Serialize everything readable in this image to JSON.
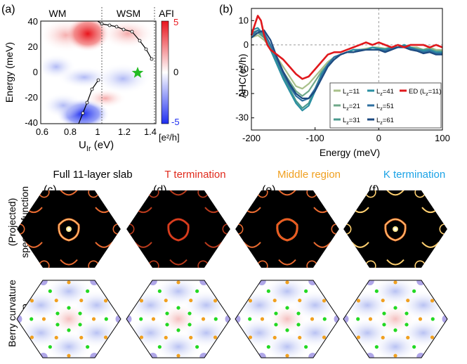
{
  "panel_a": {
    "label": "(a)",
    "phases": [
      "WM",
      "WSM",
      "AFI"
    ],
    "xlabel_main": "U",
    "xlabel_sub": "Ir",
    "xlabel_unit": " (eV)",
    "ylabel": "Energy (meV)",
    "xticks": [
      "0.6",
      "0.8",
      "1",
      "1.2",
      "1.4"
    ],
    "yticks": [
      "40",
      "20",
      "0",
      "-20",
      "-40"
    ],
    "colorbar_ticks": [
      "5",
      "0",
      "-5"
    ],
    "colorbar_unit": "[e²/h]",
    "colors": {
      "positive": "#e8141c",
      "negative": "#1e2ef0",
      "zero": "#ffffff",
      "marker": "#22bb22"
    }
  },
  "chart_data": {
    "type": "line",
    "label": "(b)",
    "xlabel": "Energy (meV)",
    "ylabel": "AHC(e²/h)",
    "xlim": [
      -200,
      100
    ],
    "ylim": [
      -35,
      15
    ],
    "xticks": [
      "-200",
      "-100",
      "0",
      "100"
    ],
    "yticks": [
      "10",
      "0",
      "-10",
      "-20",
      "-30"
    ],
    "legend_placement": "bottom-right",
    "series": [
      {
        "name": "L",
        "sub": "z",
        "val": "=11",
        "color": "#a9c08a",
        "x": [
          -200,
          -190,
          -180,
          -170,
          -160,
          -150,
          -140,
          -130,
          -120,
          -110,
          -100,
          -90,
          -80,
          -70,
          -60,
          -50,
          -40,
          -30,
          -20,
          -10,
          0,
          10,
          20,
          30,
          40,
          50,
          60,
          70,
          80,
          90,
          100
        ],
        "y": [
          3,
          4,
          2,
          -1,
          -5,
          -9,
          -13,
          -17,
          -18,
          -16,
          -13,
          -10,
          -7,
          -5,
          -4,
          -3,
          -2,
          -2,
          -1.5,
          -1,
          -1,
          -1.5,
          -1,
          -1,
          0,
          -1,
          -1,
          -2,
          -1,
          -2,
          -2
        ]
      },
      {
        "name": "L",
        "sub": "z",
        "val": "=21",
        "color": "#6fa88a",
        "x": [
          -200,
          -190,
          -180,
          -170,
          -160,
          -150,
          -140,
          -130,
          -120,
          -110,
          -100,
          -90,
          -80,
          -70,
          -60,
          -50,
          -40,
          -30,
          -20,
          -10,
          0,
          10,
          20,
          30,
          40,
          50,
          60,
          70,
          80,
          90,
          100
        ],
        "y": [
          4,
          5,
          3,
          -1,
          -6,
          -11,
          -15,
          -19,
          -21,
          -19,
          -15,
          -11,
          -8,
          -5,
          -4,
          -3,
          -2,
          -2,
          -2,
          -1,
          -1.5,
          -1.5,
          -1,
          -1,
          0,
          -1,
          -1.5,
          -2,
          -1.5,
          -2.5,
          -2.5
        ]
      },
      {
        "name": "L",
        "sub": "z",
        "val": "=31",
        "color": "#4a9a8e",
        "x": [
          -200,
          -190,
          -180,
          -170,
          -160,
          -150,
          -140,
          -130,
          -120,
          -110,
          -100,
          -90,
          -80,
          -70,
          -60,
          -50,
          -40,
          -30,
          -20,
          -10,
          0,
          10,
          20,
          30,
          40,
          50,
          60,
          70,
          80,
          90,
          100
        ],
        "y": [
          5,
          6,
          3,
          -2,
          -7,
          -13,
          -18,
          -23,
          -26,
          -24,
          -18,
          -12,
          -8,
          -6,
          -4,
          -3,
          -3,
          -2,
          -2,
          -2,
          -2,
          -2,
          -1,
          -1,
          0,
          -1,
          -2,
          -2,
          -2,
          -3,
          -3
        ]
      },
      {
        "name": "L",
        "sub": "z",
        "val": "=41",
        "color": "#2a8fa2",
        "x": [
          -200,
          -190,
          -180,
          -170,
          -160,
          -150,
          -140,
          -130,
          -120,
          -110,
          -100,
          -90,
          -80,
          -70,
          -60,
          -50,
          -40,
          -30,
          -20,
          -10,
          0,
          10,
          20,
          30,
          40,
          50,
          60,
          70,
          80,
          90,
          100
        ],
        "y": [
          6,
          7,
          4,
          -2,
          -8,
          -14,
          -19,
          -24,
          -27,
          -25,
          -19,
          -12,
          -8,
          -5,
          -4,
          -3,
          -2,
          -2,
          -2,
          -1,
          -1.5,
          -2,
          -1,
          -1,
          0,
          -1,
          -2,
          -2.5,
          -2,
          -3,
          -3
        ]
      },
      {
        "name": "L",
        "sub": "z",
        "val": "=51",
        "color": "#2e6fa0",
        "x": [
          -200,
          -190,
          -180,
          -170,
          -160,
          -150,
          -140,
          -130,
          -120,
          -110,
          -100,
          -90,
          -80,
          -70,
          -60,
          -50,
          -40,
          -30,
          -20,
          -10,
          0,
          10,
          20,
          30,
          40,
          50,
          60,
          70,
          80,
          90,
          100
        ],
        "y": [
          4,
          6,
          5,
          0,
          -6,
          -12,
          -17,
          -21,
          -23,
          -22,
          -18,
          -13,
          -8,
          -5,
          -4,
          -3,
          -3,
          -2,
          -2,
          -2,
          -2,
          -2.5,
          -1.5,
          -1,
          -0.5,
          -1.5,
          -2,
          -3,
          -2.5,
          -3.5,
          -3.5
        ]
      },
      {
        "name": "L",
        "sub": "z",
        "val": "=61",
        "color": "#1d4a80",
        "x": [
          -200,
          -190,
          -180,
          -170,
          -160,
          -150,
          -140,
          -130,
          -120,
          -110,
          -100,
          -90,
          -80,
          -70,
          -60,
          -50,
          -40,
          -30,
          -20,
          -10,
          0,
          10,
          20,
          30,
          40,
          50,
          60,
          70,
          80,
          90,
          100
        ],
        "y": [
          3,
          5,
          6,
          2,
          -5,
          -11,
          -16,
          -20,
          -22,
          -22,
          -19,
          -14,
          -9,
          -6,
          -4,
          -3,
          -3,
          -2.5,
          -2,
          -2,
          -2,
          -3,
          -2,
          -1,
          -1,
          -2,
          -2.5,
          -3.5,
          -3,
          -4,
          -4
        ]
      },
      {
        "name": "ED (L",
        "sub": "z",
        "val": "=11)",
        "color": "#e0181c",
        "x": [
          -200,
          -195,
          -190,
          -185,
          -180,
          -175,
          -170,
          -160,
          -150,
          -140,
          -130,
          -120,
          -110,
          -100,
          -90,
          -80,
          -70,
          -60,
          -50,
          -40,
          -30,
          -20,
          -10,
          0,
          10,
          20,
          30,
          40,
          50,
          60,
          70,
          80,
          90,
          100
        ],
        "y": [
          4,
          8,
          12,
          10,
          4,
          0,
          -2,
          -4,
          -6,
          -9,
          -12,
          -14,
          -13,
          -10,
          -7,
          -4,
          -3,
          -3,
          -2,
          -1,
          0,
          1,
          0,
          1,
          0,
          -1,
          0,
          -1,
          0,
          0,
          0,
          -1,
          0,
          -1
        ]
      }
    ]
  },
  "columns": [
    {
      "label": "(c)",
      "title": "Full 11-layer slab",
      "title_color": "#000000"
    },
    {
      "label": "(d)",
      "title": "T termination",
      "title_color": "#e02a1c"
    },
    {
      "label": "(e)",
      "title": "Middle region",
      "title_color": "#f0a020"
    },
    {
      "label": "(f)",
      "title": "K termination",
      "title_color": "#1aa2e6"
    }
  ],
  "row_labels": {
    "spectral_line1": "(Projected)",
    "spectral_line2": "spectral function",
    "berry_line1": "Berry curvature",
    "berry_line2": "map"
  }
}
